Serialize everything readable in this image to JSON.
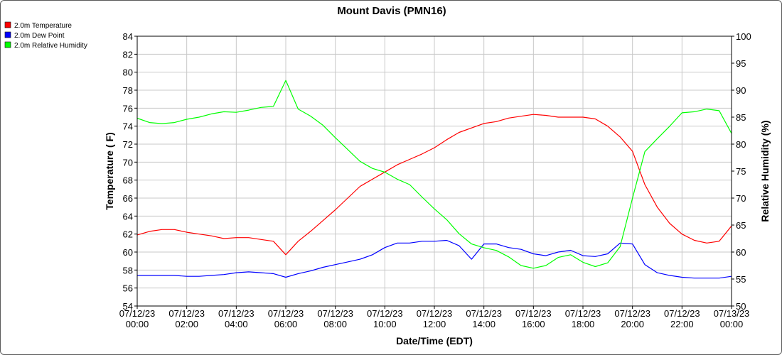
{
  "chart_data": {
    "type": "line",
    "title": "Mount Davis (PMN16)",
    "xlabel": "Date/Time (EDT)",
    "ylabel_left": "Temperature ( F)",
    "ylabel_right": "Relative Humidity (%)",
    "ylim_left": [
      54,
      84
    ],
    "ylim_right": [
      50,
      100
    ],
    "xlim_hours": [
      0,
      24
    ],
    "grid": true,
    "legend_position": "top-left",
    "x_ticks": [
      {
        "date": "07/12/23",
        "time": "00:00"
      },
      {
        "date": "07/12/23",
        "time": "02:00"
      },
      {
        "date": "07/12/23",
        "time": "04:00"
      },
      {
        "date": "07/12/23",
        "time": "06:00"
      },
      {
        "date": "07/12/23",
        "time": "08:00"
      },
      {
        "date": "07/12/23",
        "time": "10:00"
      },
      {
        "date": "07/12/23",
        "time": "12:00"
      },
      {
        "date": "07/12/23",
        "time": "14:00"
      },
      {
        "date": "07/12/23",
        "time": "16:00"
      },
      {
        "date": "07/12/23",
        "time": "18:00"
      },
      {
        "date": "07/12/23",
        "time": "20:00"
      },
      {
        "date": "07/12/23",
        "time": "22:00"
      },
      {
        "date": "07/13/23",
        "time": "00:00"
      }
    ],
    "y_ticks_left": [
      "54",
      "56",
      "58",
      "60",
      "62",
      "64",
      "66",
      "68",
      "70",
      "72",
      "74",
      "76",
      "78",
      "80",
      "82",
      "84"
    ],
    "y_ticks_right": [
      "50",
      "55",
      "60",
      "65",
      "70",
      "75",
      "80",
      "85",
      "90",
      "95",
      "100"
    ],
    "x_hours": [
      0,
      0.5,
      1,
      1.5,
      2,
      2.5,
      3,
      3.5,
      4,
      4.5,
      5,
      5.5,
      6,
      6.5,
      7,
      7.5,
      8,
      8.5,
      9,
      9.5,
      10,
      10.5,
      11,
      11.5,
      12,
      12.5,
      13,
      13.5,
      14,
      14.5,
      15,
      15.5,
      16,
      16.5,
      17,
      17.5,
      18,
      18.5,
      19,
      19.5,
      20,
      20.5,
      21,
      21.5,
      22,
      22.5,
      23,
      23.5,
      24
    ],
    "series": [
      {
        "name": "2.0m Temperature",
        "color": "#ff0000",
        "axis": "left",
        "values": [
          61.9,
          62.3,
          62.5,
          62.5,
          62.2,
          62.0,
          61.8,
          61.5,
          61.6,
          61.6,
          61.4,
          61.2,
          59.7,
          61.2,
          62.3,
          63.5,
          64.7,
          66.0,
          67.3,
          68.1,
          68.9,
          69.7,
          70.3,
          70.9,
          71.6,
          72.5,
          73.3,
          73.8,
          74.3,
          74.5,
          74.9,
          75.1,
          75.3,
          75.2,
          75.0,
          75.0,
          75.0,
          74.8,
          74.0,
          72.8,
          71.2,
          67.5,
          65.0,
          63.2,
          62.0,
          61.3,
          61.0,
          61.2,
          62.9
        ]
      },
      {
        "name": "2.0m Dew Point",
        "color": "#0000ff",
        "axis": "left",
        "values": [
          57.4,
          57.4,
          57.4,
          57.4,
          57.3,
          57.3,
          57.4,
          57.5,
          57.7,
          57.8,
          57.7,
          57.6,
          57.2,
          57.6,
          57.9,
          58.3,
          58.6,
          58.9,
          59.2,
          59.7,
          60.5,
          61.0,
          61.0,
          61.2,
          61.2,
          61.3,
          60.7,
          59.2,
          60.9,
          60.9,
          60.5,
          60.3,
          59.8,
          59.6,
          60.0,
          60.2,
          59.6,
          59.5,
          59.8,
          61.0,
          60.9,
          58.6,
          57.7,
          57.4,
          57.2,
          57.1,
          57.1,
          57.1,
          57.3
        ]
      },
      {
        "name": "2.0m Relative Humidity",
        "color": "#00ff00",
        "axis": "right",
        "values": [
          84.8,
          84.0,
          83.8,
          84.0,
          84.6,
          85.0,
          85.6,
          86.0,
          85.9,
          86.3,
          86.8,
          87.0,
          91.8,
          86.5,
          85.2,
          83.5,
          81.2,
          79.0,
          76.8,
          75.5,
          74.8,
          73.5,
          72.5,
          70.2,
          68.0,
          66.0,
          63.4,
          61.5,
          60.8,
          60.3,
          59.1,
          57.5,
          57.0,
          57.5,
          59.0,
          59.5,
          58.1,
          57.3,
          58.0,
          61.0,
          70.0,
          78.6,
          81.0,
          83.3,
          85.8,
          86.0,
          86.5,
          86.2,
          82.0
        ]
      }
    ]
  }
}
